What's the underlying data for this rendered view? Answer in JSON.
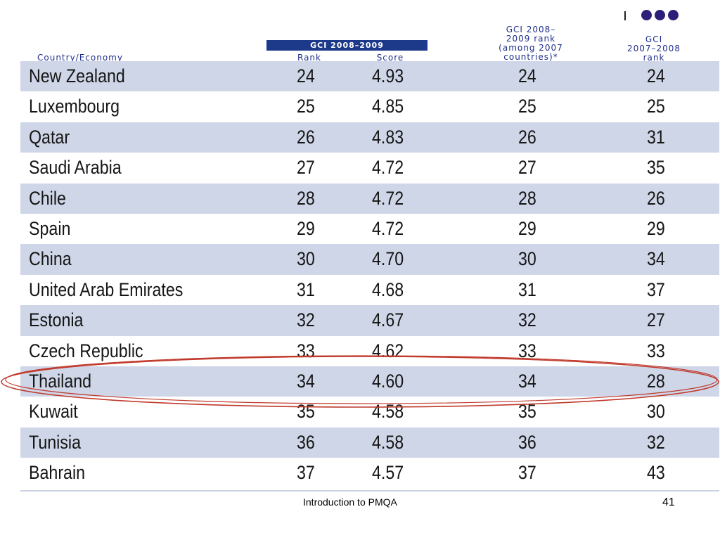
{
  "header": {
    "country": "Country/Economy",
    "gci_band": "GCI 2008–2009",
    "rank": "Rank",
    "score": "Score",
    "among_line1": "GCI 2008–",
    "among_line2": "2009 rank",
    "among_line3": "(among 2007",
    "among_line4": "countries)*",
    "prev_line1": "GCI",
    "prev_line2": "2007–2008",
    "prev_line3": "rank"
  },
  "rows": [
    {
      "country": "New Zealand",
      "rank": "24",
      "score": "4.93",
      "among": "24",
      "prev": "24"
    },
    {
      "country": "Luxembourg",
      "rank": "25",
      "score": "4.85",
      "among": "25",
      "prev": "25"
    },
    {
      "country": "Qatar",
      "rank": "26",
      "score": "4.83",
      "among": "26",
      "prev": "31"
    },
    {
      "country": "Saudi Arabia",
      "rank": "27",
      "score": "4.72",
      "among": "27",
      "prev": "35"
    },
    {
      "country": "Chile",
      "rank": "28",
      "score": "4.72",
      "among": "28",
      "prev": "26"
    },
    {
      "country": "Spain",
      "rank": "29",
      "score": "4.72",
      "among": "29",
      "prev": "29"
    },
    {
      "country": "China",
      "rank": "30",
      "score": "4.70",
      "among": "30",
      "prev": "34"
    },
    {
      "country": "United Arab Emirates",
      "rank": "31",
      "score": "4.68",
      "among": "31",
      "prev": "37"
    },
    {
      "country": "Estonia",
      "rank": "32",
      "score": "4.67",
      "among": "32",
      "prev": "27"
    },
    {
      "country": "Czech Republic",
      "rank": "33",
      "score": "4.62",
      "among": "33",
      "prev": "33"
    },
    {
      "country": "Thailand",
      "rank": "34",
      "score": "4.60",
      "among": "34",
      "prev": "28"
    },
    {
      "country": "Kuwait",
      "rank": "35",
      "score": "4.58",
      "among": "35",
      "prev": "30"
    },
    {
      "country": "Tunisia",
      "rank": "36",
      "score": "4.58",
      "among": "36",
      "prev": "32"
    },
    {
      "country": "Bahrain",
      "rank": "37",
      "score": "4.57",
      "among": "37",
      "prev": "43"
    }
  ],
  "highlight_color": "#c0392b",
  "row_shade_color": "#cfd6e7",
  "footer": {
    "text": "Introduction to PMQA",
    "page": "41"
  }
}
